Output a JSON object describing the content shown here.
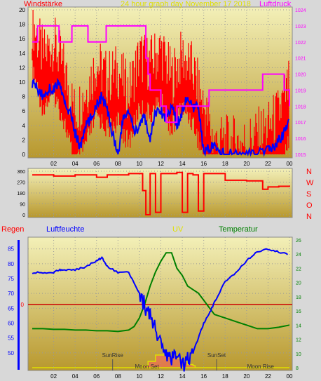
{
  "title": "24 hour graph day November 17 2018",
  "colors": {
    "wind": "#ff0000",
    "gust": "#0000ff",
    "pressure": "#ff00ff",
    "direction": "#ff0000",
    "rain": "#ff0000",
    "humidity": "#0000ff",
    "uv": "#e0e000",
    "temperature": "#008000",
    "panel_bg_top": "#f3f0b8",
    "panel_bg_bottom": "#b8982e"
  },
  "chart_data": [
    {
      "type": "line",
      "name": "wind-pressure",
      "title": "24 hour graph day November 17 2018",
      "ylabel_left": "Windstärke",
      "ylabel_right": "Luftdruck",
      "x_ticks": [
        "02",
        "04",
        "06",
        "08",
        "10",
        "12",
        "14",
        "16",
        "18",
        "20",
        "22",
        "00"
      ],
      "y_left_ticks": [
        "0",
        "2",
        "4",
        "6",
        "8",
        "10",
        "12",
        "14",
        "16",
        "18",
        "20"
      ],
      "y_right_ticks": [
        "1015",
        "1016",
        "1017",
        "1018",
        "1019",
        "1020",
        "1021",
        "1022",
        "1023",
        "1024"
      ],
      "ylim_left": [
        0,
        20
      ],
      "ylim_right": [
        1015,
        1024
      ],
      "xlim": [
        0,
        24
      ],
      "series": [
        {
          "role": "wind-red",
          "x": [
            0,
            1,
            2,
            3,
            4,
            5,
            6,
            7,
            8,
            9,
            10,
            11,
            12,
            13,
            14,
            15,
            16,
            17,
            18,
            19,
            20,
            21,
            22,
            23,
            24
          ],
          "y": [
            17,
            12,
            14,
            10,
            4,
            7,
            11,
            9,
            10,
            7,
            12,
            11,
            13,
            9,
            12,
            10,
            5,
            0,
            0,
            0,
            0,
            1,
            2,
            4,
            8
          ]
        },
        {
          "role": "wind-blue",
          "x": [
            0,
            0.5,
            1,
            1.5,
            2,
            2.5,
            3,
            3.5,
            4,
            4.5,
            5,
            5.5,
            6,
            6.5,
            7,
            7.5,
            8,
            8.5,
            9,
            9.5,
            10,
            10.5,
            11,
            11.5,
            12,
            12.5,
            13,
            13.5,
            14,
            14.5,
            15,
            15.5,
            16,
            16.5,
            17,
            17.5,
            18,
            19,
            20,
            21,
            22,
            22.5,
            23,
            23.5,
            24
          ],
          "y": [
            10,
            9,
            8,
            9,
            9,
            10,
            7,
            6,
            3,
            1,
            4,
            5,
            7,
            8,
            6,
            3,
            0,
            5,
            6,
            3,
            4,
            5,
            2,
            6,
            6,
            5,
            7,
            4,
            6,
            8,
            6,
            7,
            0,
            1,
            1,
            0.3,
            0,
            0,
            0,
            0,
            0.5,
            1,
            2,
            3,
            5
          ]
        },
        {
          "role": "pressure",
          "x": [
            0,
            0.5,
            2.3,
            2.5,
            3.5,
            3.7,
            5,
            5.2,
            6.7,
            6.9,
            10.1,
            10.6,
            10.8,
            11.0,
            12,
            12.5,
            13.5,
            14,
            16,
            16.5,
            17.5,
            18,
            19.5,
            20,
            21.5,
            22,
            23.5,
            24
          ],
          "y": [
            1022,
            1023,
            1023,
            1022,
            1022,
            1023,
            1023,
            1022,
            1022,
            1023,
            1023,
            1021,
            1020,
            1019,
            1018,
            1017,
            1018,
            1018,
            1018,
            1019,
            1019,
            1019,
            1019,
            1019,
            1020,
            1020,
            1019,
            1018
          ]
        }
      ]
    },
    {
      "type": "line",
      "name": "wind-direction",
      "y_ticks": [
        "0",
        "90",
        "180",
        "270",
        "360"
      ],
      "ylim": [
        0,
        360
      ],
      "xlim": [
        0,
        24
      ],
      "direction_labels": [
        "N",
        "W",
        "S",
        "O",
        "N"
      ],
      "series": [
        {
          "role": "direction",
          "x": [
            0,
            2,
            4,
            6,
            7,
            8,
            9,
            10,
            10.3,
            10.6,
            11,
            11.5,
            12,
            13,
            13.5,
            14,
            14.5,
            15,
            15.5,
            16,
            17,
            18,
            19,
            20,
            21,
            21.5,
            22,
            23,
            24
          ],
          "y": [
            330,
            320,
            330,
            310,
            330,
            330,
            340,
            340,
            200,
            0,
            340,
            20,
            340,
            340,
            350,
            20,
            340,
            330,
            30,
            340,
            340,
            285,
            285,
            280,
            280,
            210,
            230,
            235,
            230
          ]
        }
      ]
    },
    {
      "type": "line",
      "name": "rain-humidity-uv-temp",
      "labels": {
        "rain": "Regen",
        "humidity": "Luftfeuchte",
        "uv": "UV",
        "temperature": "Temperatur"
      },
      "y_left_ticks": [
        "50",
        "55",
        "60",
        "65",
        "70",
        "75",
        "80",
        "85"
      ],
      "ylim_left": [
        45,
        88
      ],
      "rain_marker": "0",
      "y_right_ticks": [
        "8",
        "10",
        "12",
        "14",
        "16",
        "18",
        "20",
        "22",
        "24",
        "26"
      ],
      "ylim_right": [
        8,
        26
      ],
      "xlim": [
        0,
        24
      ],
      "annotations": [
        {
          "text": "SunRise",
          "x": 7.5
        },
        {
          "text": "Moon Set",
          "x": 10.7
        },
        {
          "text": "SunSet",
          "x": 17.2
        },
        {
          "text": "Moon Rise",
          "x": 21.3
        }
      ],
      "series": [
        {
          "role": "humidity",
          "x": [
            0,
            1,
            2,
            2.5,
            3,
            4,
            5,
            6,
            6.5,
            7,
            8,
            9,
            10,
            10.5,
            11,
            11.5,
            12,
            12.5,
            13,
            13.5,
            14,
            14.5,
            15,
            15.5,
            16,
            16.5,
            17,
            18,
            19,
            20,
            21,
            22,
            23,
            24
          ],
          "y": [
            77,
            77,
            77,
            78,
            78,
            78,
            79,
            81,
            82,
            79,
            77,
            77,
            70,
            66,
            62,
            58,
            53,
            50,
            48,
            48,
            46,
            48,
            50,
            55,
            60,
            63,
            67,
            74,
            77,
            81,
            84,
            85,
            84,
            83
          ]
        },
        {
          "role": "temperature",
          "x": [
            0,
            1,
            2,
            3,
            4,
            5,
            6,
            7,
            8,
            9,
            9.5,
            10,
            10.5,
            11,
            11.5,
            12,
            12.5,
            13,
            13.5,
            14,
            14.5,
            15,
            15.5,
            16,
            16.5,
            17,
            18,
            19,
            20,
            21,
            22,
            23,
            24
          ],
          "y": [
            13.5,
            13.5,
            13.4,
            13.4,
            13.3,
            13.3,
            13.2,
            13.2,
            13.1,
            13.3,
            13.8,
            15,
            17,
            19.5,
            21.5,
            23,
            24.2,
            24.2,
            22,
            21,
            19.5,
            19,
            18.5,
            17.5,
            16.5,
            15.5,
            15,
            14.5,
            14,
            13.5,
            13.5,
            13.7,
            14
          ]
        },
        {
          "role": "uv",
          "x": [
            0,
            10,
            10.3,
            10.8,
            11.5,
            12,
            13,
            13.5,
            14,
            14.5,
            15,
            15.2,
            24
          ],
          "y": [
            0,
            0,
            0.3,
            1,
            2,
            2,
            2,
            1.5,
            1,
            0.5,
            0.3,
            0,
            0
          ]
        }
      ]
    }
  ]
}
